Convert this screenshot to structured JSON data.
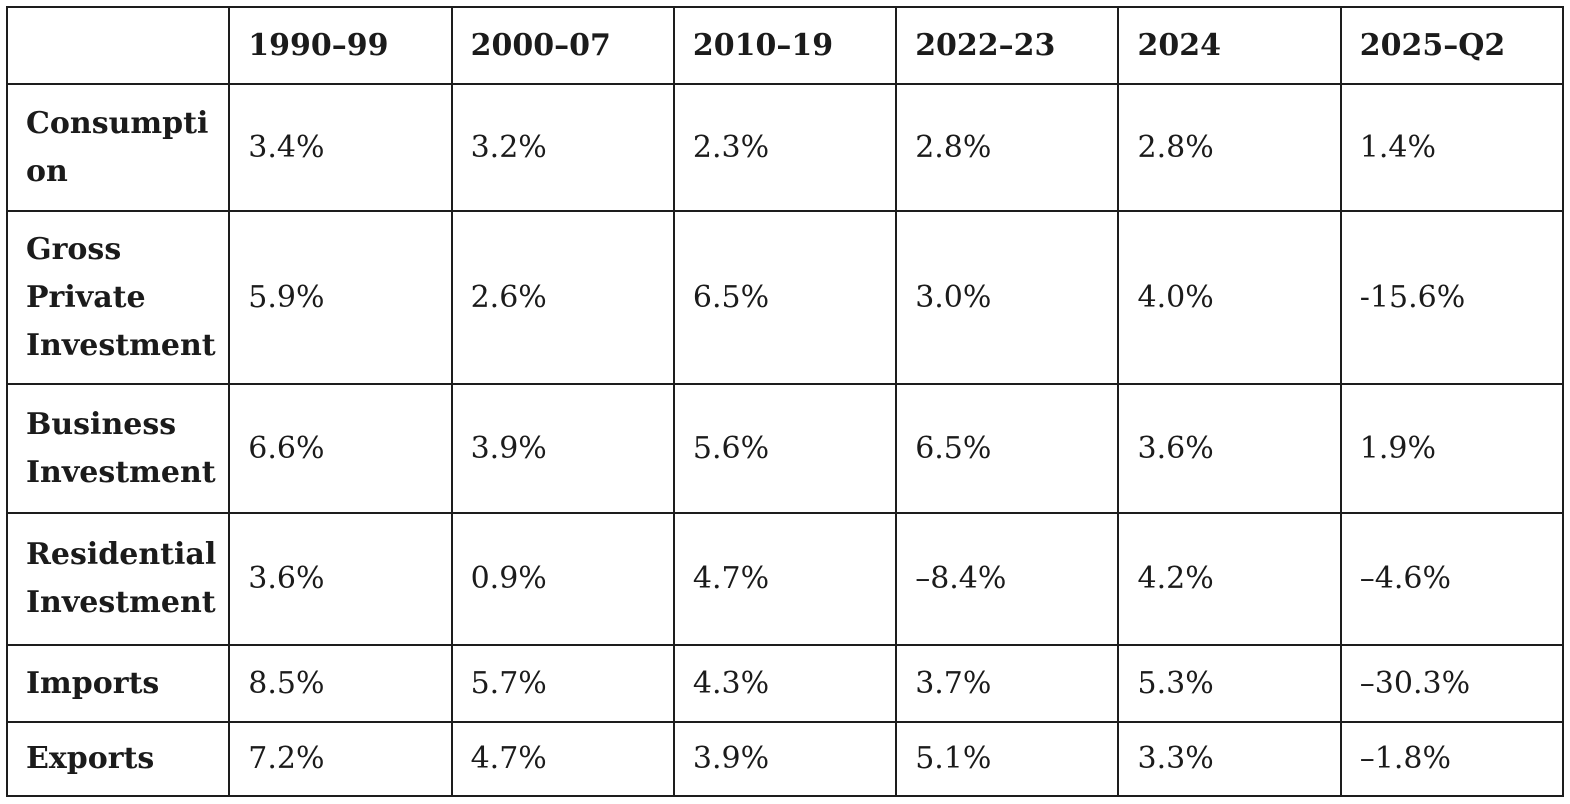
{
  "table": {
    "description": "Average growth rates of GDP components by period",
    "colors": {
      "border": "#1d1d1d",
      "text": "#1b1b1b",
      "background": "#ffffff"
    },
    "columns": [
      "",
      "1990–99",
      "2000–07",
      "2010–19",
      "2022–23",
      "2024",
      "2025–Q2"
    ],
    "rows": [
      {
        "label": "Consumption",
        "values": [
          "3.4%",
          "3.2%",
          "2.3%",
          "2.8%",
          "2.8%",
          "1.4%"
        ]
      },
      {
        "label": "Gross Private Investment",
        "values": [
          "5.9%",
          "2.6%",
          "6.5%",
          "3.0%",
          "4.0%",
          "-15.6%"
        ]
      },
      {
        "label": "Business Investment",
        "values": [
          "6.6%",
          "3.9%",
          "5.6%",
          "6.5%",
          "3.6%",
          "1.9%"
        ]
      },
      {
        "label": "Residential Investment",
        "values": [
          "3.6%",
          "0.9%",
          "4.7%",
          "–8.4%",
          "4.2%",
          "–4.6%"
        ]
      },
      {
        "label": "Imports",
        "values": [
          "8.5%",
          "5.7%",
          "4.3%",
          "3.7%",
          "5.3%",
          "–30.3%"
        ]
      },
      {
        "label": "Exports",
        "values": [
          "7.2%",
          "4.7%",
          "3.9%",
          "5.1%",
          "3.3%",
          "–1.8%"
        ]
      }
    ]
  }
}
